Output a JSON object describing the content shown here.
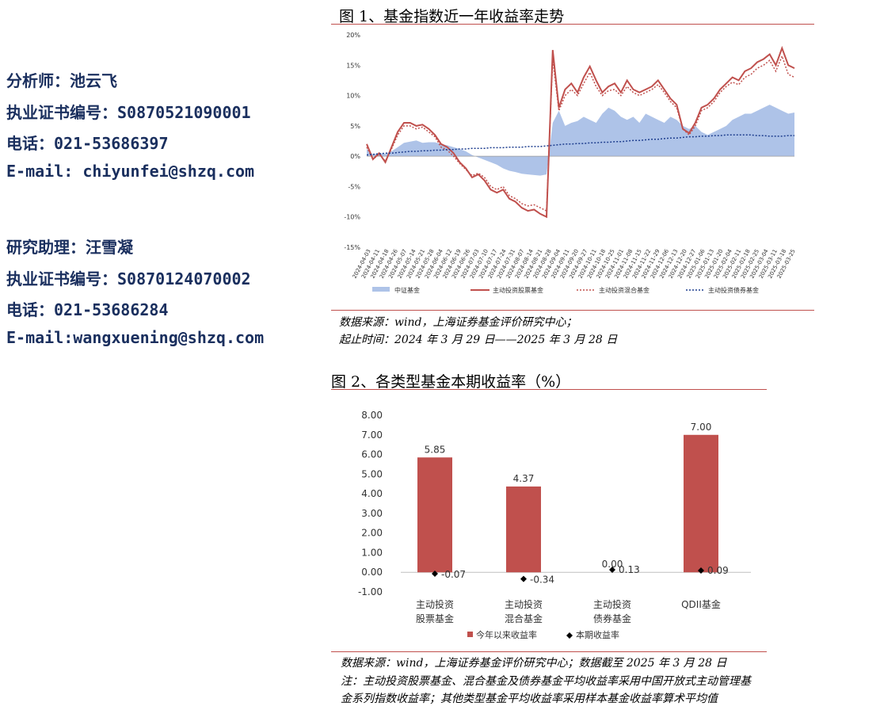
{
  "analysts": [
    {
      "lines": [
        "分析师：池云飞",
        "执业证书编号：S0870521090001",
        "电话：021-53686397",
        "E-mail: chiyunfei@shzq.com"
      ]
    },
    {
      "lines": [
        "研究助理：汪雪凝",
        "执业证书编号：S0870124070002",
        "电话：021-53686284",
        "E-mail:wangxuening@shzq.com"
      ]
    }
  ],
  "figure1": {
    "title": "图 1、基金指数近一年收益率走势",
    "source_lines": [
      "数据来源：wind，上海证券基金评价研究中心；",
      "起止时间：2024 年 3 月 29 日——2025 年 3 月 28 日"
    ]
  },
  "figure2": {
    "title": "图 2、各类型基金本期收益率（%）",
    "source_lines": [
      "数据来源：wind，上海证券基金评价研究中心；数据截至 2025 年 3 月 28 日",
      "注：主动投资股票基金、混合基金及债券基金平均收益率采用中国开放式主动管理基",
      "金系列指数收益率；其他类型基金平均收益率采用样本基金收益率算术平均值"
    ]
  },
  "colors": {
    "red": "#c0504d",
    "blue_fill": "#aec3e8",
    "blue_line": "#1f3f8f"
  },
  "chart_data": [
    {
      "type": "line",
      "title": "",
      "ylim": [
        -15,
        20
      ],
      "yticks": [
        "20%",
        "15%",
        "10%",
        "5%",
        "0%",
        "-5%",
        "-10%",
        "-15%"
      ],
      "xticks": [
        "2024-04-03",
        "2024-04-11",
        "2024-04-18",
        "2024-04-26",
        "2024-05-07",
        "2024-05-14",
        "2024-05-21",
        "2024-05-28",
        "2024-06-04",
        "2024-06-12",
        "2024-06-19",
        "2024-06-26",
        "2024-07-03",
        "2024-07-10",
        "2024-07-17",
        "2024-07-24",
        "2024-07-31",
        "2024-08-07",
        "2024-08-14",
        "2024-08-21",
        "2024-08-28",
        "2024-09-04",
        "2024-09-11",
        "2024-09-20",
        "2024-09-27",
        "2024-10-11",
        "2024-10-18",
        "2024-10-25",
        "2024-11-01",
        "2024-11-08",
        "2024-11-15",
        "2024-11-22",
        "2024-11-29",
        "2024-12-06",
        "2024-12-13",
        "2024-12-20",
        "2024-12-27",
        "2025-01-06",
        "2025-01-13",
        "2025-01-20",
        "2025-02-04",
        "2025-02-11",
        "2025-02-18",
        "2025-02-25",
        "2025-03-04",
        "2025-03-11",
        "2025-03-18",
        "2025-03-25"
      ],
      "legend_placement": "bottom",
      "series": [
        {
          "name": "中证基金",
          "style": "area",
          "values": [
            1.2,
            0.3,
            0.5,
            0.4,
            0.8,
            1.5,
            2.2,
            2.4,
            2.6,
            2.2,
            2.3,
            2.3,
            2.0,
            1.8,
            1.5,
            1.2,
            0.8,
            0.2,
            -0.2,
            -0.6,
            -1.0,
            -1.4,
            -2.0,
            -2.4,
            -2.6,
            -2.9,
            -3.0,
            -3.1,
            -3.2,
            -3.0,
            5.5,
            7.5,
            5.0,
            5.5,
            5.8,
            6.5,
            6.0,
            5.5,
            7.0,
            8.0,
            7.5,
            6.5,
            6.0,
            6.5,
            5.5,
            7.0,
            6.5,
            6.0,
            5.5,
            6.5,
            6.0,
            5.0,
            4.5,
            5.0,
            4.0,
            3.5,
            4.0,
            4.5,
            5.0,
            6.0,
            6.5,
            7.0,
            7.0,
            7.5,
            8.0,
            8.5,
            8.0,
            7.5,
            7.0,
            7.2
          ]
        },
        {
          "name": "主动投资股票基金",
          "style": "solid",
          "values": [
            2.0,
            -0.5,
            0.5,
            -1.0,
            1.5,
            4.0,
            5.5,
            5.5,
            5.0,
            5.2,
            4.5,
            3.5,
            2.0,
            1.5,
            0.5,
            -1.0,
            -2.0,
            -3.5,
            -3.0,
            -4.0,
            -5.5,
            -6.0,
            -5.5,
            -7.0,
            -7.5,
            -8.5,
            -9.0,
            -8.8,
            -9.5,
            -10.0,
            17.5,
            8.0,
            11.0,
            12.0,
            10.5,
            13.0,
            14.8,
            12.5,
            10.5,
            11.5,
            12.0,
            10.5,
            12.5,
            11.0,
            10.5,
            11.0,
            11.5,
            12.5,
            11.0,
            9.5,
            8.5,
            4.5,
            3.8,
            5.5,
            8.0,
            8.5,
            9.5,
            11.0,
            12.0,
            13.0,
            12.5,
            14.0,
            14.5,
            15.5,
            16.0,
            16.8,
            15.0,
            17.8,
            15.0,
            14.5
          ]
        },
        {
          "name": "主动投资混合基金",
          "style": "dotted",
          "values": [
            1.5,
            -0.5,
            0.3,
            -0.8,
            1.2,
            3.5,
            5.0,
            5.0,
            4.5,
            4.8,
            4.0,
            3.2,
            1.5,
            1.0,
            0.0,
            -1.2,
            -2.2,
            -3.2,
            -2.8,
            -3.5,
            -5.0,
            -5.5,
            -5.0,
            -6.5,
            -7.0,
            -7.8,
            -8.2,
            -8.0,
            -8.5,
            -9.0,
            16.0,
            7.5,
            10.0,
            11.0,
            10.0,
            12.0,
            13.8,
            11.5,
            10.0,
            10.8,
            11.0,
            10.0,
            11.5,
            10.5,
            10.0,
            10.5,
            11.0,
            11.8,
            10.5,
            9.0,
            8.0,
            4.5,
            3.5,
            5.0,
            7.5,
            8.0,
            9.0,
            10.5,
            11.5,
            12.2,
            11.8,
            13.0,
            13.5,
            14.5,
            15.0,
            15.8,
            14.0,
            16.5,
            13.5,
            13.0
          ]
        },
        {
          "name": "主动投资债券基金",
          "style": "dotted",
          "values": [
            0.2,
            0.3,
            0.4,
            0.5,
            0.5,
            0.6,
            0.7,
            0.8,
            0.8,
            0.9,
            0.9,
            1.0,
            1.0,
            1.1,
            1.1,
            1.2,
            1.2,
            1.3,
            1.3,
            1.3,
            1.4,
            1.4,
            1.4,
            1.5,
            1.5,
            1.5,
            1.6,
            1.6,
            1.6,
            1.7,
            1.8,
            1.9,
            2.0,
            2.0,
            2.1,
            2.1,
            2.2,
            2.2,
            2.3,
            2.3,
            2.4,
            2.4,
            2.5,
            2.6,
            2.6,
            2.7,
            2.8,
            2.8,
            2.9,
            3.0,
            3.0,
            3.1,
            3.2,
            3.2,
            3.3,
            3.3,
            3.4,
            3.4,
            3.5,
            3.5,
            3.5,
            3.5,
            3.5,
            3.4,
            3.4,
            3.3,
            3.3,
            3.3,
            3.4,
            3.4
          ]
        }
      ]
    },
    {
      "type": "bar",
      "title": "",
      "ylim": [
        -1,
        8
      ],
      "yticks": [
        "8.00",
        "7.00",
        "6.00",
        "5.00",
        "4.00",
        "3.00",
        "2.00",
        "1.00",
        "0.00",
        "-1.00"
      ],
      "categories": [
        [
          "主动投资",
          "股票基金"
        ],
        [
          "主动投资",
          "混合基金"
        ],
        [
          "主动投资",
          "债券基金"
        ],
        [
          "QDII基金"
        ]
      ],
      "legend_placement": "bottom",
      "series": [
        {
          "name": "今年以来收益率",
          "style": "bar",
          "values": [
            5.85,
            4.37,
            0.0,
            7.0
          ],
          "labels": [
            "5.85",
            "4.37",
            "0.00",
            "7.00"
          ]
        },
        {
          "name": "本期收益率",
          "style": "marker",
          "values": [
            -0.07,
            -0.34,
            0.13,
            0.09
          ],
          "labels": [
            "-0.07",
            "-0.34",
            "0.13",
            "0.09"
          ]
        }
      ]
    }
  ]
}
